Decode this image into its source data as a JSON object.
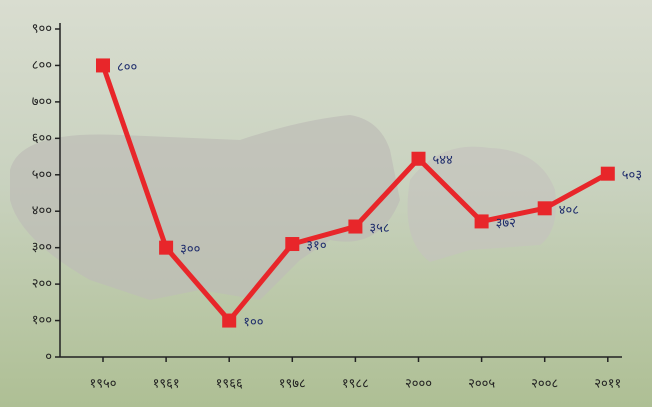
{
  "chart_data": {
    "type": "line",
    "categories": [
      "१९५०",
      "१९६१",
      "१९६६",
      "१९७८",
      "१९८८",
      "२०००",
      "२००५",
      "२००८",
      "२०११"
    ],
    "values": [
      800,
      300,
      100,
      310,
      358,
      544,
      372,
      408,
      503
    ],
    "value_labels": [
      "८००",
      "३००",
      "१००",
      "३१०",
      "३५८",
      "५४४",
      "३७२",
      "४०८",
      "५०३"
    ],
    "color": "#e8262a",
    "ylim": [
      0,
      900
    ],
    "yticks": [
      {
        "value": 0,
        "label": "०"
      },
      {
        "value": 100,
        "label": "१००"
      },
      {
        "value": 200,
        "label": "२००"
      },
      {
        "value": 300,
        "label": "३००"
      },
      {
        "value": 400,
        "label": "४००"
      },
      {
        "value": 500,
        "label": "५००"
      },
      {
        "value": 600,
        "label": "६००"
      },
      {
        "value": 700,
        "label": "७००"
      },
      {
        "value": 800,
        "label": "८००"
      },
      {
        "value": 900,
        "label": "९००"
      }
    ]
  }
}
